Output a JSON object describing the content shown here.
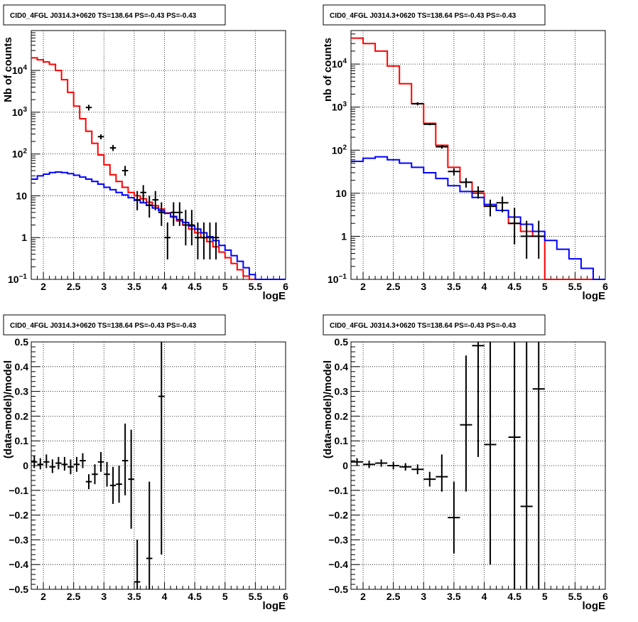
{
  "panels": [
    {
      "title": "CID0_4FGL J0314.3+0620 TS=138.64 PS=-0.43 PS=-0.43"
    },
    {
      "title": "CID0_4FGL J0314.3+0620 TS=138.64 PS=-0.43 PS=-0.43"
    },
    {
      "title": "CID0_4FGL J0314.3+0620 TS=138.64 PS=-0.43 PS=-0.43"
    },
    {
      "title": "CID0_4FGL J0314.3+0620 TS=138.64 PS=-0.43 PS=-0.43"
    }
  ],
  "colors": {
    "total_model": "#ff0000",
    "component_model": "#0000ff",
    "data": "#000000",
    "grid": "#000000"
  },
  "chart_data": [
    {
      "type": "line",
      "xlabel": "logE",
      "ylabel": "Nb of counts",
      "xlim": [
        1.8,
        6.0
      ],
      "ylim": [
        0.1,
        90000
      ],
      "yscale": "log",
      "grid": true,
      "xticks": [
        "2",
        "2.5",
        "3",
        "3.5",
        "4",
        "4.5",
        "5",
        "5.5",
        "6"
      ],
      "yticks": [
        "10^-1",
        "1",
        "10",
        "10^2",
        "10^3",
        "10^4"
      ],
      "binwidth": 0.1,
      "series": [
        {
          "kind": "step",
          "color": "red",
          "x": [
            1.85,
            1.95,
            2.05,
            2.15,
            2.25,
            2.35,
            2.45,
            2.55,
            2.65,
            2.75,
            2.85,
            2.95,
            3.05,
            3.15,
            3.25,
            3.35,
            3.45,
            3.55,
            3.65,
            3.75,
            3.85,
            3.95,
            4.05,
            4.15,
            4.25,
            4.35,
            4.45,
            4.55,
            4.65,
            4.75,
            4.85,
            4.95,
            5.05,
            5.15,
            5.25,
            5.35,
            5.45,
            5.55,
            5.65,
            5.75,
            5.85,
            5.95
          ],
          "y": [
            20000,
            18000,
            16000,
            14000,
            10000,
            6000,
            3000,
            1400,
            700,
            350,
            180,
            95,
            55,
            32,
            22,
            16,
            12,
            10,
            8.5,
            7,
            5.8,
            4.8,
            3.9,
            3.1,
            2.5,
            2.0,
            1.6,
            1.3,
            1.0,
            0.8,
            0.6,
            0.45,
            0.33,
            0.24,
            0.17,
            0.12,
            0.1,
            0.1,
            0.1,
            0.1,
            0.1,
            0.1
          ]
        },
        {
          "kind": "step",
          "color": "blue",
          "x": [
            1.85,
            1.95,
            2.05,
            2.15,
            2.25,
            2.35,
            2.45,
            2.55,
            2.65,
            2.75,
            2.85,
            2.95,
            3.05,
            3.15,
            3.25,
            3.35,
            3.45,
            3.55,
            3.65,
            3.75,
            3.85,
            3.95,
            4.05,
            4.15,
            4.25,
            4.35,
            4.45,
            4.55,
            4.65,
            4.75,
            4.85,
            4.95,
            5.05,
            5.15,
            5.25,
            5.35,
            5.45,
            5.55,
            5.65,
            5.75,
            5.85,
            5.95
          ],
          "y": [
            25,
            30,
            33,
            36,
            37,
            36,
            34,
            31,
            28,
            25,
            22,
            19,
            16,
            14,
            12,
            10.5,
            9,
            7.8,
            6.8,
            5.9,
            5.1,
            4.4,
            3.8,
            3.2,
            2.7,
            2.3,
            1.9,
            1.6,
            1.3,
            1.05,
            0.85,
            0.65,
            0.5,
            0.37,
            0.27,
            0.19,
            0.13,
            0.1,
            0.1,
            0.1,
            0.1,
            0.1
          ]
        },
        {
          "kind": "points",
          "color": "black",
          "x": [
            2.75,
            2.95,
            3.15,
            3.35,
            3.55,
            3.65,
            3.75,
            3.85,
            3.95,
            4.05,
            4.15,
            4.25,
            4.35,
            4.45,
            4.55,
            4.65,
            4.75,
            4.85
          ],
          "y": [
            1300,
            260,
            140,
            40,
            8,
            12,
            6,
            8,
            4,
            1,
            4,
            4,
            2,
            2,
            1,
            1,
            1,
            1
          ],
          "ylo": [
            1100,
            225,
            118,
            30,
            4.5,
            7,
            3,
            4.5,
            1.9,
            0.3,
            1.9,
            1.9,
            0.65,
            0.65,
            0.3,
            0.3,
            0.3,
            0.3
          ],
          "yhi": [
            1500,
            295,
            165,
            52,
            13,
            18,
            10,
            13,
            7,
            2.3,
            7,
            7,
            4.6,
            4.6,
            2.3,
            2.3,
            2.3,
            2.3
          ]
        }
      ]
    },
    {
      "type": "line",
      "xlabel": "logE",
      "ylabel": "nb of counts",
      "xlim": [
        1.8,
        6.0
      ],
      "ylim": [
        0.1,
        60000
      ],
      "yscale": "log",
      "grid": true,
      "xticks": [
        "2",
        "2.5",
        "3",
        "3.5",
        "4",
        "4.5",
        "5",
        "5.5",
        "6"
      ],
      "yticks": [
        "10^-1",
        "1",
        "10",
        "10^2",
        "10^3",
        "10^4"
      ],
      "binwidth": 0.2,
      "series": [
        {
          "kind": "step",
          "color": "red",
          "x": [
            1.9,
            2.1,
            2.3,
            2.5,
            2.7,
            2.9,
            3.1,
            3.3,
            3.5,
            3.7,
            3.9,
            4.1,
            4.3,
            4.5,
            4.7,
            4.9,
            5.1,
            5.3,
            5.5,
            5.7,
            5.9
          ],
          "y": [
            40000,
            30000,
            20000,
            9000,
            3500,
            1200,
            420,
            130,
            40,
            18,
            10,
            5,
            4,
            2,
            1.3,
            1.0,
            0.1,
            0.1,
            0.1,
            0.1,
            0.1
          ]
        },
        {
          "kind": "step",
          "color": "blue",
          "x": [
            1.9,
            2.1,
            2.3,
            2.5,
            2.7,
            2.9,
            3.1,
            3.3,
            3.5,
            3.7,
            3.9,
            4.1,
            4.3,
            4.5,
            4.7,
            4.9,
            5.1,
            5.3,
            5.5,
            5.7,
            5.9
          ],
          "y": [
            55,
            65,
            70,
            60,
            50,
            40,
            30,
            22,
            15,
            11,
            8,
            5.5,
            4,
            2.8,
            1.9,
            1.3,
            0.8,
            0.5,
            0.3,
            0.18,
            0.1
          ]
        },
        {
          "kind": "points",
          "color": "black",
          "x": [
            2.9,
            3.1,
            3.3,
            3.5,
            3.7,
            3.9,
            4.1,
            4.3,
            4.5,
            4.7,
            4.9
          ],
          "y": [
            1200,
            400,
            120,
            32,
            18,
            11,
            5,
            6,
            2,
            1,
            1
          ],
          "ylo": [
            1100,
            380,
            108,
            26,
            13.5,
            7.5,
            2.9,
            3.6,
            0.65,
            0.3,
            0.3
          ],
          "yhi": [
            1300,
            420,
            132,
            38,
            22.5,
            14.5,
            7.1,
            8.4,
            4.6,
            2.3,
            2.3
          ]
        }
      ]
    },
    {
      "type": "scatter",
      "xlabel": "logE",
      "ylabel": "(data-model)/model",
      "xlim": [
        1.8,
        6.0
      ],
      "ylim": [
        -0.5,
        0.5
      ],
      "grid": true,
      "xticks": [
        "2",
        "2.5",
        "3",
        "3.5",
        "4",
        "4.5",
        "5",
        "5.5",
        "6"
      ],
      "yticks": [
        "-0.5",
        "-0.4",
        "-0.3",
        "-0.2",
        "-0.1",
        "0",
        "0.1",
        "0.2",
        "0.3",
        "0.4",
        "0.5"
      ],
      "binwidth": 0.1,
      "series": [
        {
          "kind": "points",
          "color": "black",
          "x": [
            1.85,
            1.95,
            2.05,
            2.15,
            2.25,
            2.35,
            2.45,
            2.55,
            2.65,
            2.75,
            2.85,
            2.95,
            3.05,
            3.15,
            3.25,
            3.35,
            3.45,
            3.55,
            3.75,
            3.95
          ],
          "y": [
            0.015,
            0.005,
            0.015,
            -0.005,
            0.01,
            0.005,
            -0.005,
            0.005,
            0.02,
            -0.065,
            -0.035,
            0.015,
            -0.035,
            -0.08,
            -0.075,
            0.02,
            -0.055,
            -0.47,
            -0.375,
            0.28
          ],
          "ylo": [
            -0.01,
            -0.015,
            -0.01,
            -0.03,
            -0.015,
            -0.02,
            -0.035,
            -0.025,
            -0.01,
            -0.095,
            -0.075,
            -0.025,
            -0.085,
            -0.155,
            -0.15,
            -0.12,
            -0.255,
            -0.5,
            -0.5,
            -0.36
          ],
          "yhi": [
            0.04,
            0.03,
            0.045,
            0.025,
            0.035,
            0.035,
            0.025,
            0.035,
            0.05,
            -0.035,
            0.005,
            0.055,
            0.015,
            -0.005,
            0.0,
            0.17,
            0.145,
            -0.3,
            -0.065,
            0.5
          ]
        }
      ]
    },
    {
      "type": "scatter",
      "xlabel": "logE",
      "ylabel": "(data-model)/model",
      "xlim": [
        1.8,
        6.0
      ],
      "ylim": [
        -0.5,
        0.5
      ],
      "grid": true,
      "xticks": [
        "2",
        "2.5",
        "3",
        "3.5",
        "4",
        "4.5",
        "5",
        "5.5",
        "6"
      ],
      "yticks": [
        "-0.5",
        "-0.4",
        "-0.3",
        "-0.2",
        "-0.1",
        "0",
        "0.1",
        "0.2",
        "0.3",
        "0.4",
        "0.5"
      ],
      "binwidth": 0.2,
      "series": [
        {
          "kind": "points",
          "color": "black",
          "x": [
            1.9,
            2.1,
            2.3,
            2.5,
            2.7,
            2.9,
            3.1,
            3.3,
            3.5,
            3.7,
            3.9,
            4.1,
            4.5,
            4.7,
            4.9
          ],
          "y": [
            0.015,
            0.005,
            0.01,
            0.0,
            -0.005,
            -0.015,
            -0.055,
            -0.045,
            -0.21,
            0.165,
            0.485,
            0.085,
            0.115,
            -0.165,
            0.31
          ],
          "ylo": [
            0.0,
            -0.01,
            -0.005,
            -0.015,
            -0.02,
            -0.035,
            -0.085,
            -0.105,
            -0.355,
            -0.105,
            0.035,
            -0.4,
            -0.5,
            -0.5,
            -0.5
          ],
          "yhi": [
            0.03,
            0.02,
            0.025,
            0.015,
            0.01,
            0.005,
            -0.025,
            0.045,
            -0.065,
            0.445,
            0.5,
            0.5,
            0.5,
            0.5,
            0.5
          ]
        }
      ]
    }
  ]
}
